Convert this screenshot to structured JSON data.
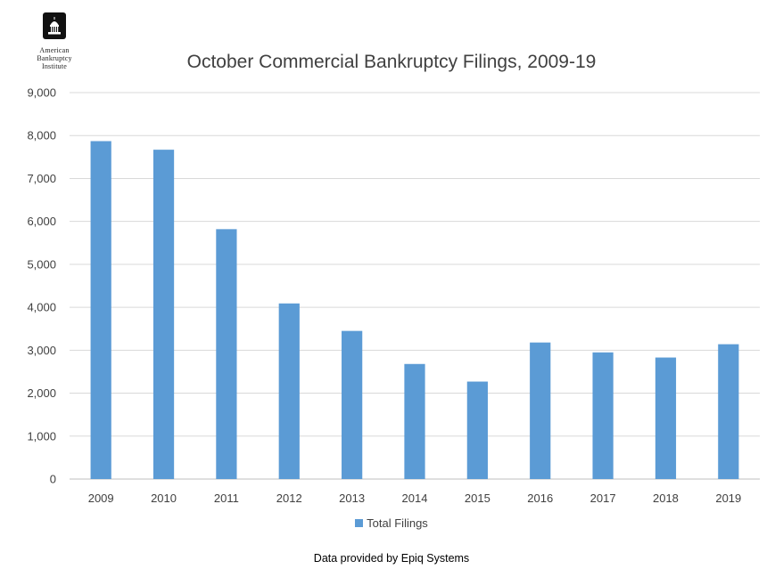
{
  "logo": {
    "lines": [
      "American",
      "Bankruptcy",
      "Institute"
    ]
  },
  "chart_data": {
    "type": "bar",
    "title": "October Commercial Bankruptcy Filings, 2009-19",
    "xlabel": "",
    "ylabel": "",
    "categories": [
      "2009",
      "2010",
      "2011",
      "2012",
      "2013",
      "2014",
      "2015",
      "2016",
      "2017",
      "2018",
      "2019"
    ],
    "series": [
      {
        "name": "Total Filings",
        "values": [
          7870,
          7670,
          5820,
          4090,
          3450,
          2680,
          2270,
          3180,
          2950,
          2830,
          3140
        ],
        "color": "#5b9bd5"
      }
    ],
    "ylim": [
      0,
      9000
    ],
    "yticks": [
      "0",
      "1,000",
      "2,000",
      "3,000",
      "4,000",
      "5,000",
      "6,000",
      "7,000",
      "8,000",
      "9,000"
    ],
    "grid": true,
    "legend_position": "bottom"
  },
  "source_note": "Data provided by Epiq Systems"
}
